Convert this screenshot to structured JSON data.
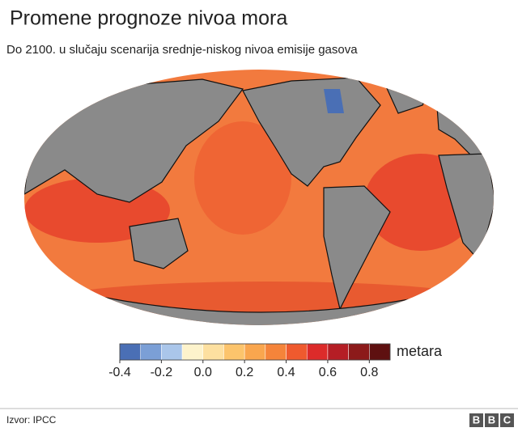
{
  "header": {
    "title": "Promene prognoze nivoa mora",
    "subtitle": "Do 2100. u slučaju scenarija srednje-niskog nivoa emisije gasova"
  },
  "map": {
    "legend": {
      "bins": [
        -0.4,
        -0.3,
        -0.2,
        -0.1,
        0,
        0.1,
        0.2,
        0.3,
        0.4,
        0.5,
        0.6,
        0.7,
        0.8,
        0.9
      ],
      "colors": [
        "#4a6fb5",
        "#7b9fd6",
        "#aac6ea",
        "#fdf3cc",
        "#fde0a0",
        "#fcc46c",
        "#f9a64e",
        "#f5843a",
        "#ef5a2e",
        "#dc2b2a",
        "#b51e25",
        "#8c1a1a",
        "#5e1010"
      ],
      "ticks": [
        -0.4,
        -0.2,
        {
          "value": 0,
          "label": "0.0"
        },
        0.2,
        0.4,
        0.6,
        0.8
      ],
      "unit": "metara"
    }
  },
  "footer": {
    "source": "Izvor: IPCC",
    "logo": [
      "B",
      "B",
      "C"
    ]
  }
}
